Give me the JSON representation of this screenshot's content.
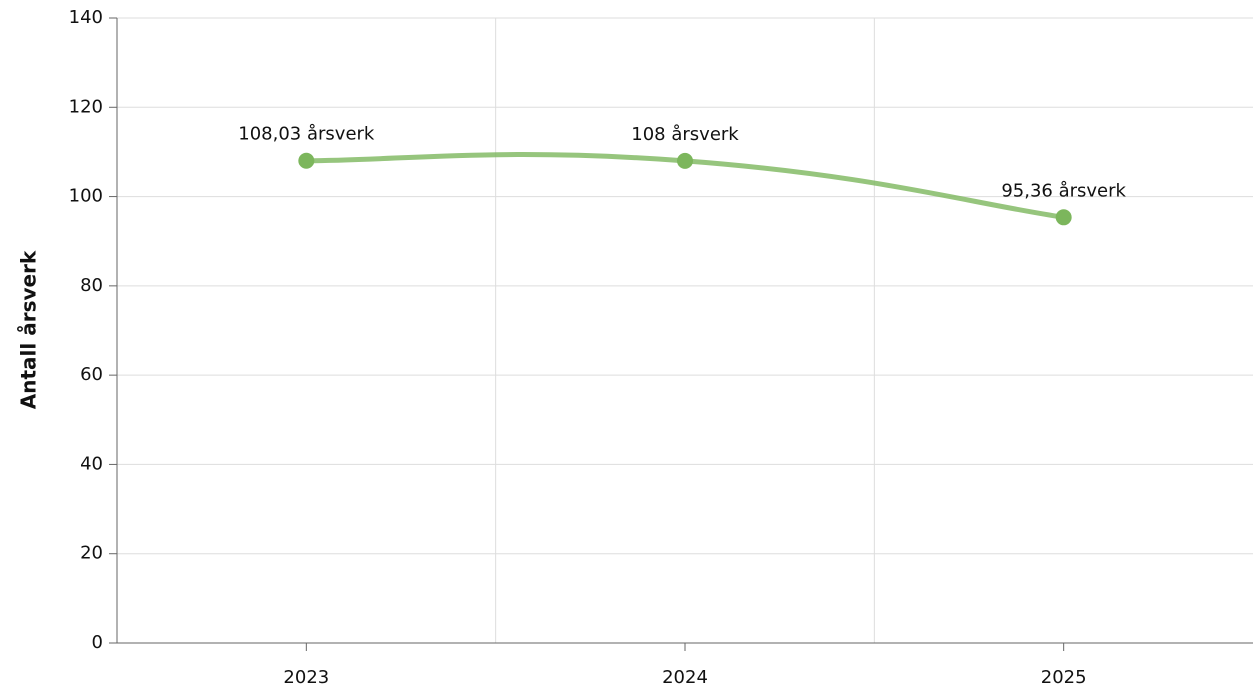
{
  "chart_data": {
    "type": "line",
    "y_label": "Antall årsverk",
    "categories": [
      "2023",
      "2024",
      "2025"
    ],
    "series": [
      {
        "color": "#7cb65c",
        "values": [
          108.03,
          108,
          95.36
        ],
        "value_labels": [
          "108,03 årsverk",
          "108 årsverk",
          "95,36 årsverk"
        ]
      }
    ],
    "ylim": [
      0,
      140
    ],
    "yticks": [
      0,
      20,
      40,
      60,
      80,
      100,
      120,
      140
    ],
    "grid": true
  }
}
